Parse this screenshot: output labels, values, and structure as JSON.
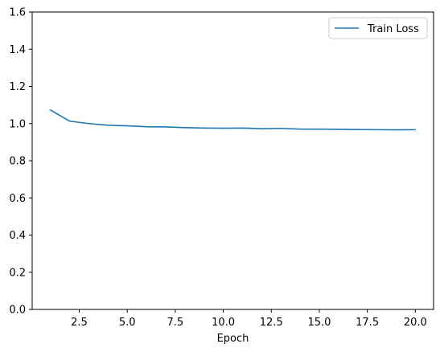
{
  "chart_data": {
    "type": "line",
    "title": "",
    "xlabel": "Epoch",
    "ylabel": "",
    "xlim": [
      0.05,
      20.95
    ],
    "ylim": [
      0,
      1.6
    ],
    "xticks": [
      2.5,
      5.0,
      7.5,
      10.0,
      12.5,
      15.0,
      17.5,
      20.0
    ],
    "xtick_labels": [
      "2.5",
      "5.0",
      "7.5",
      "10.0",
      "12.5",
      "15.0",
      "17.5",
      "20.0"
    ],
    "yticks": [
      0.0,
      0.2,
      0.4,
      0.6,
      0.8,
      1.0,
      1.2,
      1.4,
      1.6
    ],
    "ytick_labels": [
      "0.0",
      "0.2",
      "0.4",
      "0.6",
      "0.8",
      "1.0",
      "1.2",
      "1.4",
      "1.6"
    ],
    "grid": false,
    "legend_position": "top-right",
    "series": [
      {
        "name": "Train Loss",
        "color": "#1f77b4",
        "x": [
          1,
          2,
          3,
          4,
          5,
          6,
          7,
          8,
          9,
          10,
          11,
          12,
          13,
          14,
          15,
          16,
          17,
          18,
          19,
          20
        ],
        "y": [
          1.073,
          1.013,
          1.0,
          0.991,
          0.988,
          0.983,
          0.982,
          0.978,
          0.976,
          0.975,
          0.976,
          0.972,
          0.974,
          0.97,
          0.97,
          0.969,
          0.968,
          0.967,
          0.966,
          0.967
        ]
      }
    ]
  }
}
